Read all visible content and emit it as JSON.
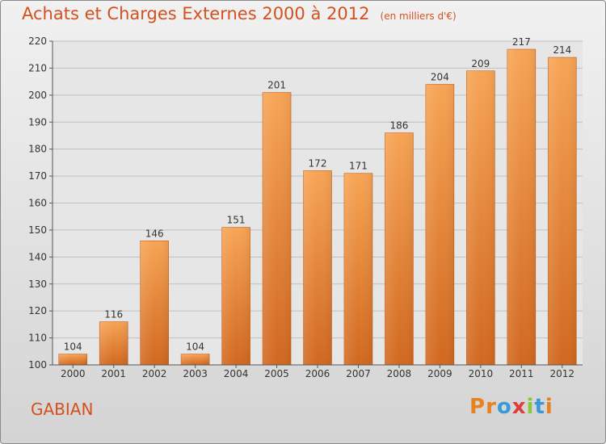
{
  "header": {
    "title": "Achats et Charges Externes 2000 à 2012",
    "unit": "(en milliers d'€)"
  },
  "footer": {
    "place": "GABIAN",
    "logo_text": "Proxiti"
  },
  "colors": {
    "accent": "#d4511f",
    "bar_top": "#f7a455",
    "bar_bottom": "#d1681f",
    "logo": [
      "#e8821e",
      "#e8821e",
      "#3a9ad9",
      "#e23b3b",
      "#8cc63f",
      "#3a9ad9",
      "#e8821e"
    ]
  },
  "chart_data": {
    "type": "bar",
    "categories": [
      "2000",
      "2001",
      "2002",
      "2003",
      "2004",
      "2005",
      "2006",
      "2007",
      "2008",
      "2009",
      "2010",
      "2011",
      "2012"
    ],
    "values": [
      104,
      116,
      146,
      104,
      151,
      201,
      172,
      171,
      186,
      204,
      209,
      217,
      214
    ],
    "ylim": [
      100,
      220
    ],
    "yticks": [
      100,
      110,
      120,
      130,
      140,
      150,
      160,
      170,
      180,
      190,
      200,
      210,
      220
    ],
    "grid": true,
    "data_labels": true
  }
}
